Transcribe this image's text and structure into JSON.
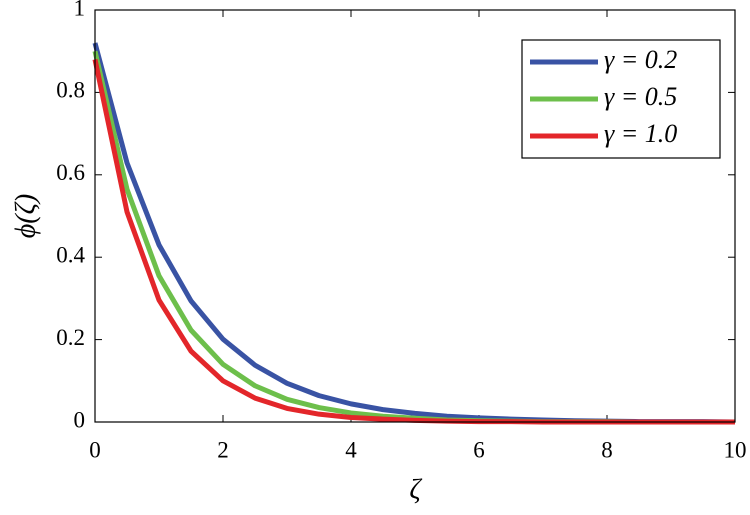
{
  "chart_data": {
    "type": "line",
    "x": [
      0,
      0.5,
      1,
      1.5,
      2,
      2.5,
      3,
      3.5,
      4,
      4.5,
      5,
      5.5,
      6,
      6.5,
      7,
      7.5,
      8,
      8.5,
      9,
      9.5,
      10
    ],
    "series": [
      {
        "name": "γ = 0.2",
        "color": "#3953a4",
        "values": [
          0.92,
          0.629,
          0.43,
          0.294,
          0.201,
          0.138,
          0.094,
          0.064,
          0.044,
          0.03,
          0.021,
          0.014,
          0.01,
          0.007,
          0.005,
          0.003,
          0.002,
          0.001,
          0.001,
          0.001,
          0
        ]
      },
      {
        "name": "γ = 0.5",
        "color": "#6dbf4b",
        "values": [
          0.9,
          0.565,
          0.355,
          0.223,
          0.14,
          0.088,
          0.055,
          0.035,
          0.022,
          0.014,
          0.009,
          0.005,
          0.003,
          0.002,
          0.001,
          0.001,
          0.001,
          0,
          0,
          0,
          0
        ]
      },
      {
        "name": "γ = 1.0",
        "color": "#e3262a",
        "values": [
          0.88,
          0.51,
          0.296,
          0.172,
          0.1,
          0.058,
          0.033,
          0.019,
          0.011,
          0.007,
          0.004,
          0.002,
          0.001,
          0.001,
          0,
          0,
          0,
          0,
          0,
          0,
          0
        ]
      }
    ],
    "xlabel": "ζ",
    "ylabel": "ϕ(ζ)",
    "xlim": [
      0,
      10
    ],
    "ylim": [
      0,
      1
    ],
    "xticks": [
      0,
      2,
      4,
      6,
      8,
      10
    ],
    "yticks": [
      0,
      0.2,
      0.4,
      0.6,
      0.8,
      1
    ],
    "grid": false,
    "legend": "upper right"
  }
}
